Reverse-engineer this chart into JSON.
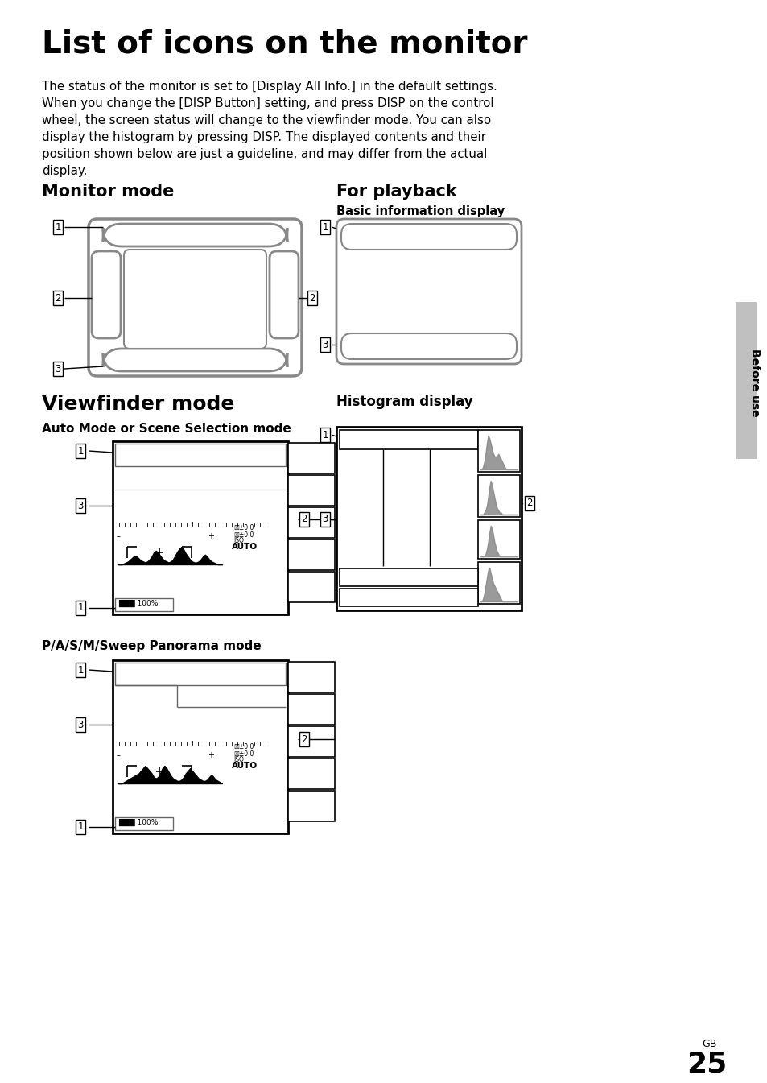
{
  "title": "List of icons on the monitor",
  "body_lines": [
    "The status of the monitor is set to [Display All Info.] in the default settings.",
    "When you change the [DISP Button] setting, and press DISP on the control",
    "wheel, the screen status will change to the viewfinder mode. You can also",
    "display the histogram by pressing DISP. The displayed contents and their",
    "position shown below are just a guideline, and may differ from the actual",
    "display."
  ],
  "sec1": "Monitor mode",
  "sec2": "For playback",
  "basic_info": "Basic information display",
  "sec3": "Viewfinder mode",
  "sec4": "Histogram display",
  "sub1": "Auto Mode or Scene Selection mode",
  "sub2": "P/A/S/M/Sweep Panorama mode",
  "sidebar": "Before use",
  "gb": "GB",
  "page": "25",
  "bg": "#ffffff",
  "gray_tab": "#c0c0c0",
  "diagram_gray": "#888888",
  "line_gray": "#666666"
}
